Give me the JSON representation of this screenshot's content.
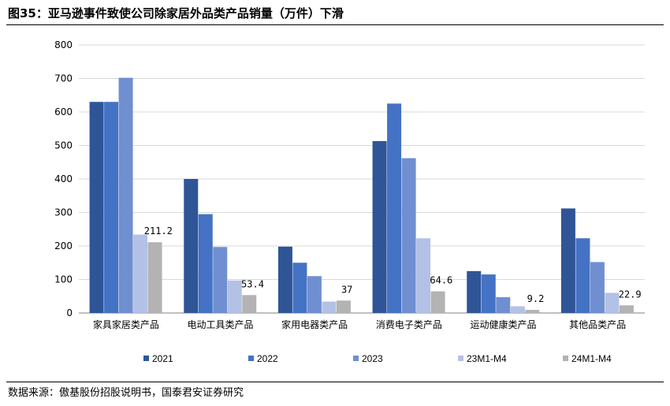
{
  "header": {
    "title": "图35：亚马逊事件致使公司除家居外品类产品销量（万件）下滑"
  },
  "footer": {
    "source": "数据来源：傲基股份招股说明书，国泰君安证券研究"
  },
  "chart_data": {
    "type": "bar",
    "title": "图35：亚马逊事件致使公司除家居外品类产品销量（万件）下滑",
    "xlabel": "",
    "ylabel": "",
    "ylim": [
      0,
      800
    ],
    "yticks": [
      0,
      100,
      200,
      300,
      400,
      500,
      600,
      700,
      800
    ],
    "grid": true,
    "legend_position": "bottom",
    "categories": [
      "家具家居类产品",
      "电动工具类产品",
      "家用电器类产品",
      "消费电子类产品",
      "运动健康类产品",
      "其他品类产品"
    ],
    "series": [
      {
        "name": "2021",
        "color": "#2F5597",
        "values": [
          630,
          400,
          198,
          513,
          125,
          312
        ]
      },
      {
        "name": "2022",
        "color": "#4472C4",
        "values": [
          630,
          295,
          150,
          625,
          115,
          223
        ]
      },
      {
        "name": "2023",
        "color": "#6F8FD0",
        "values": [
          702,
          197,
          110,
          462,
          47,
          152
        ]
      },
      {
        "name": "23M1-M4",
        "color": "#B4C1E6",
        "values": [
          234,
          97,
          34,
          223,
          20,
          60
        ]
      },
      {
        "name": "24M1-M4",
        "color": "#B3B3B3",
        "values": [
          211.2,
          53.4,
          37,
          64.6,
          9.2,
          22.9
        ]
      }
    ],
    "data_labels": [
      {
        "series": "24M1-M4",
        "category": "家具家居类产品",
        "text": "211.2"
      },
      {
        "series": "24M1-M4",
        "category": "电动工具类产品",
        "text": "53.4"
      },
      {
        "series": "24M1-M4",
        "category": "家用电器类产品",
        "text": "37"
      },
      {
        "series": "24M1-M4",
        "category": "消费电子类产品",
        "text": "64.6"
      },
      {
        "series": "24M1-M4",
        "category": "运动健康类产品",
        "text": "9.2"
      },
      {
        "series": "24M1-M4",
        "category": "其他品类产品",
        "text": "22.9"
      }
    ]
  }
}
